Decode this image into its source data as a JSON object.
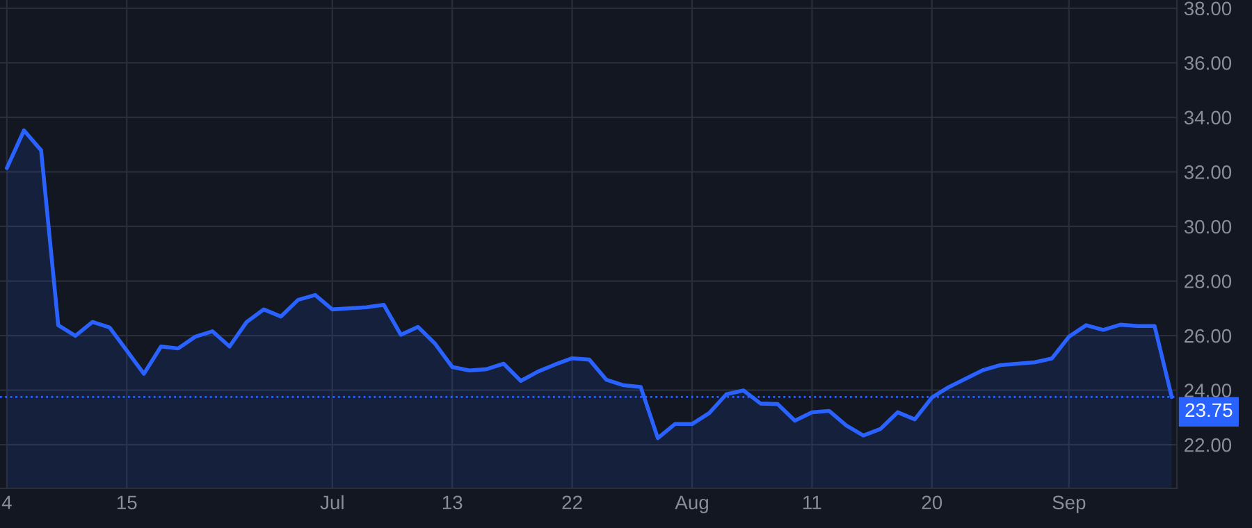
{
  "chart_data": {
    "type": "area",
    "categories": [
      "4",
      null,
      null,
      null,
      null,
      null,
      null,
      "15",
      null,
      null,
      null,
      null,
      null,
      null,
      null,
      null,
      null,
      null,
      null,
      "Jul",
      null,
      null,
      null,
      null,
      null,
      null,
      "13",
      null,
      null,
      null,
      null,
      null,
      null,
      "22",
      null,
      null,
      null,
      null,
      null,
      null,
      "Aug",
      null,
      null,
      null,
      null,
      null,
      null,
      "11",
      null,
      null,
      null,
      null,
      null,
      null,
      "20",
      null,
      null,
      null,
      null,
      null,
      null,
      null,
      "Sep",
      null,
      null,
      null,
      null,
      null,
      null
    ],
    "series": [
      {
        "color": "#2962ff",
        "values": [
          32.14,
          33.52,
          32.79,
          26.38,
          25.99,
          26.5,
          26.3,
          25.45,
          24.6,
          25.6,
          25.53,
          25.96,
          26.16,
          25.6,
          26.5,
          26.96,
          26.7,
          27.31,
          27.49,
          26.96,
          27.0,
          27.04,
          27.13,
          26.03,
          26.32,
          25.7,
          24.85,
          24.72,
          24.77,
          24.97,
          24.34,
          24.68,
          24.94,
          25.17,
          25.12,
          24.38,
          24.18,
          24.12,
          22.24,
          22.76,
          22.76,
          23.16,
          23.85,
          23.99,
          23.51,
          23.49,
          22.88,
          23.19,
          23.24,
          22.71,
          22.34,
          22.58,
          23.19,
          22.93,
          23.73,
          24.12,
          24.43,
          24.74,
          24.92,
          24.97,
          25.02,
          25.16,
          25.96,
          26.38,
          26.21,
          26.4,
          26.35,
          26.35,
          23.75
        ]
      }
    ],
    "ylim": [
      20.4,
      38.3
    ],
    "yticks": [
      {
        "value": 22,
        "label": "22.00"
      },
      {
        "value": 24,
        "label": "24.00"
      },
      {
        "value": 26,
        "label": "26.00"
      },
      {
        "value": 28,
        "label": "28.00"
      },
      {
        "value": 30,
        "label": "30.00"
      },
      {
        "value": 32,
        "label": "32.00"
      },
      {
        "value": 34,
        "label": "34.00"
      },
      {
        "value": 36,
        "label": "36.00"
      },
      {
        "value": 38,
        "label": "38.00"
      }
    ],
    "ref_lines": [
      {
        "axis": "y",
        "value": 23.75,
        "label": "23.75",
        "color": "#2962ff",
        "line_style": "dotted"
      }
    ],
    "grid": true,
    "legend": false,
    "marker": "none",
    "line_style": "solid"
  }
}
